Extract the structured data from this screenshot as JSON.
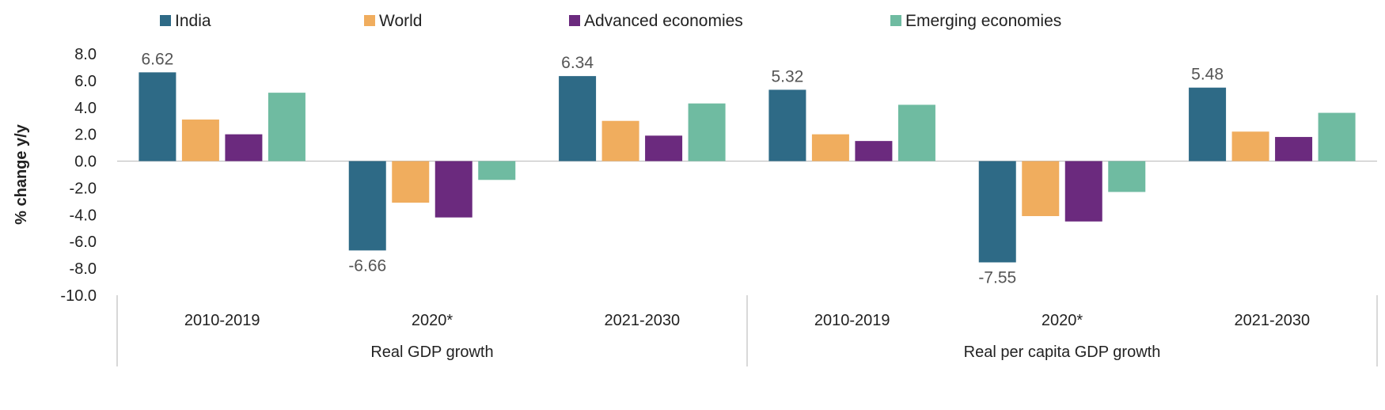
{
  "chart_data": {
    "type": "bar",
    "ylabel": "% change y/y",
    "ylim": [
      -10,
      8
    ],
    "yticks": [
      "8.0",
      "6.0",
      "4.0",
      "2.0",
      "0.0",
      "-2.0",
      "-4.0",
      "-6.0",
      "-8.0",
      "-10.0"
    ],
    "groups": [
      {
        "label": "Real GDP growth",
        "categories": [
          {
            "label": "2010-2019",
            "values": [
              6.62,
              3.1,
              2.0,
              5.1
            ]
          },
          {
            "label": "2020*",
            "values": [
              -6.66,
              -3.1,
              -4.2,
              -1.4
            ]
          },
          {
            "label": "2021-2030",
            "values": [
              6.34,
              3.0,
              1.9,
              4.3
            ]
          }
        ]
      },
      {
        "label": "Real per capita GDP growth",
        "categories": [
          {
            "label": "2010-2019",
            "values": [
              5.32,
              2.0,
              1.5,
              4.2
            ]
          },
          {
            "label": "2020*",
            "values": [
              -7.55,
              -4.1,
              -4.5,
              -2.3
            ]
          },
          {
            "label": "2021-2030",
            "values": [
              5.48,
              2.2,
              1.8,
              3.6
            ]
          }
        ]
      }
    ],
    "series": [
      {
        "name": "India",
        "color": "#2e6a86"
      },
      {
        "name": "World",
        "color": "#f0ad5e"
      },
      {
        "name": "Advanced economies",
        "color": "#6b2a7e"
      },
      {
        "name": "Emerging economies",
        "color": "#6fbba1"
      }
    ],
    "data_labels": [
      {
        "group": 0,
        "category": 0,
        "series": 0,
        "text": "6.62"
      },
      {
        "group": 0,
        "category": 1,
        "series": 0,
        "text": "-6.66"
      },
      {
        "group": 0,
        "category": 2,
        "series": 0,
        "text": "6.34"
      },
      {
        "group": 1,
        "category": 0,
        "series": 0,
        "text": "5.32"
      },
      {
        "group": 1,
        "category": 1,
        "series": 0,
        "text": "-7.55"
      },
      {
        "group": 1,
        "category": 2,
        "series": 0,
        "text": "5.48"
      }
    ],
    "legend_position": "top"
  }
}
